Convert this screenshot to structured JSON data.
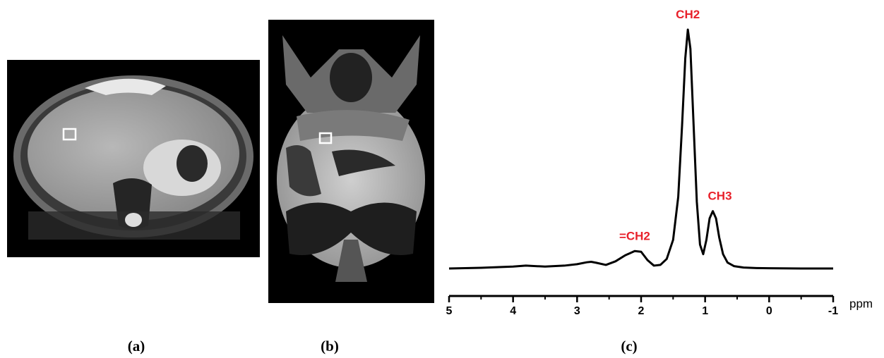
{
  "panels": [
    {
      "label": "(a)"
    },
    {
      "label": "(b)"
    },
    {
      "label": "(c)"
    }
  ],
  "chart_data": {
    "type": "line",
    "xlabel": "ppm",
    "color": "#000000",
    "x": [
      5.0,
      4.5,
      4.0,
      3.8,
      3.5,
      3.2,
      3.0,
      2.85,
      2.78,
      2.7,
      2.55,
      2.4,
      2.25,
      2.1,
      2.0,
      1.9,
      1.8,
      1.7,
      1.6,
      1.5,
      1.42,
      1.36,
      1.31,
      1.27,
      1.23,
      1.18,
      1.13,
      1.08,
      1.03,
      0.98,
      0.93,
      0.88,
      0.83,
      0.78,
      0.72,
      0.65,
      0.55,
      0.4,
      0.2,
      0,
      -0.5,
      -1.0
    ],
    "values": [
      0,
      0.3,
      0.8,
      1.2,
      0.8,
      1.2,
      1.8,
      2.6,
      2.8,
      2.4,
      1.5,
      3,
      5.5,
      7.3,
      7.0,
      3.5,
      1.2,
      1.5,
      4,
      12,
      30,
      60,
      88,
      100,
      92,
      60,
      28,
      10,
      6,
      12,
      21,
      24,
      21,
      13,
      6,
      2.5,
      1,
      0.4,
      0.2,
      0.1,
      0,
      0
    ],
    "xlim": [
      5,
      -1
    ],
    "xticks": [
      5,
      4,
      3,
      2,
      1,
      0,
      -1
    ],
    "xminorticks": [
      4.5,
      3.5,
      2.5,
      1.5,
      0.5,
      -0.5
    ],
    "ylim": [
      0,
      100
    ],
    "annotations": [
      {
        "text": "CH2",
        "x": 1.27
      },
      {
        "text": "CH3",
        "x": 0.88
      },
      {
        "text": "=CH2",
        "x": 2.1
      }
    ]
  }
}
